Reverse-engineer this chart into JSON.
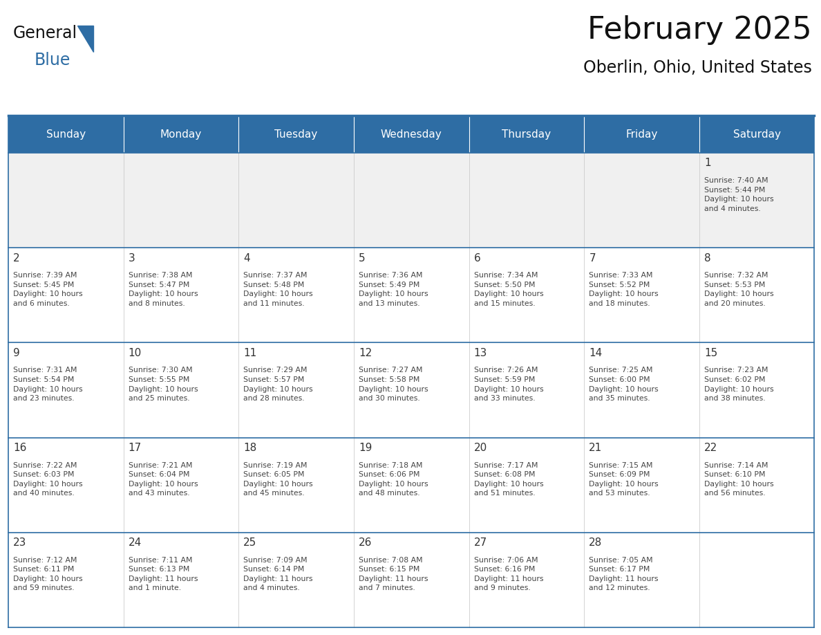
{
  "title": "February 2025",
  "subtitle": "Oberlin, Ohio, United States",
  "days_of_week": [
    "Sunday",
    "Monday",
    "Tuesday",
    "Wednesday",
    "Thursday",
    "Friday",
    "Saturday"
  ],
  "header_bg": "#2E6DA4",
  "header_text_color": "#FFFFFF",
  "cell_bg": "#FFFFFF",
  "cell_bg_first_row": "#F0F0F0",
  "cell_text_color": "#444444",
  "day_num_color": "#333333",
  "border_color": "#2E6DA4",
  "row_separator_color": "#2E6DA4",
  "col_separator_color": "#CCCCCC",
  "calendar_data": [
    [
      null,
      null,
      null,
      null,
      null,
      null,
      {
        "day": 1,
        "sunrise": "7:40 AM",
        "sunset": "5:44 PM",
        "daylight_line1": "10 hours",
        "daylight_line2": "and 4 minutes."
      }
    ],
    [
      {
        "day": 2,
        "sunrise": "7:39 AM",
        "sunset": "5:45 PM",
        "daylight_line1": "10 hours",
        "daylight_line2": "and 6 minutes."
      },
      {
        "day": 3,
        "sunrise": "7:38 AM",
        "sunset": "5:47 PM",
        "daylight_line1": "10 hours",
        "daylight_line2": "and 8 minutes."
      },
      {
        "day": 4,
        "sunrise": "7:37 AM",
        "sunset": "5:48 PM",
        "daylight_line1": "10 hours",
        "daylight_line2": "and 11 minutes."
      },
      {
        "day": 5,
        "sunrise": "7:36 AM",
        "sunset": "5:49 PM",
        "daylight_line1": "10 hours",
        "daylight_line2": "and 13 minutes."
      },
      {
        "day": 6,
        "sunrise": "7:34 AM",
        "sunset": "5:50 PM",
        "daylight_line1": "10 hours",
        "daylight_line2": "and 15 minutes."
      },
      {
        "day": 7,
        "sunrise": "7:33 AM",
        "sunset": "5:52 PM",
        "daylight_line1": "10 hours",
        "daylight_line2": "and 18 minutes."
      },
      {
        "day": 8,
        "sunrise": "7:32 AM",
        "sunset": "5:53 PM",
        "daylight_line1": "10 hours",
        "daylight_line2": "and 20 minutes."
      }
    ],
    [
      {
        "day": 9,
        "sunrise": "7:31 AM",
        "sunset": "5:54 PM",
        "daylight_line1": "10 hours",
        "daylight_line2": "and 23 minutes."
      },
      {
        "day": 10,
        "sunrise": "7:30 AM",
        "sunset": "5:55 PM",
        "daylight_line1": "10 hours",
        "daylight_line2": "and 25 minutes."
      },
      {
        "day": 11,
        "sunrise": "7:29 AM",
        "sunset": "5:57 PM",
        "daylight_line1": "10 hours",
        "daylight_line2": "and 28 minutes."
      },
      {
        "day": 12,
        "sunrise": "7:27 AM",
        "sunset": "5:58 PM",
        "daylight_line1": "10 hours",
        "daylight_line2": "and 30 minutes."
      },
      {
        "day": 13,
        "sunrise": "7:26 AM",
        "sunset": "5:59 PM",
        "daylight_line1": "10 hours",
        "daylight_line2": "and 33 minutes."
      },
      {
        "day": 14,
        "sunrise": "7:25 AM",
        "sunset": "6:00 PM",
        "daylight_line1": "10 hours",
        "daylight_line2": "and 35 minutes."
      },
      {
        "day": 15,
        "sunrise": "7:23 AM",
        "sunset": "6:02 PM",
        "daylight_line1": "10 hours",
        "daylight_line2": "and 38 minutes."
      }
    ],
    [
      {
        "day": 16,
        "sunrise": "7:22 AM",
        "sunset": "6:03 PM",
        "daylight_line1": "10 hours",
        "daylight_line2": "and 40 minutes."
      },
      {
        "day": 17,
        "sunrise": "7:21 AM",
        "sunset": "6:04 PM",
        "daylight_line1": "10 hours",
        "daylight_line2": "and 43 minutes."
      },
      {
        "day": 18,
        "sunrise": "7:19 AM",
        "sunset": "6:05 PM",
        "daylight_line1": "10 hours",
        "daylight_line2": "and 45 minutes."
      },
      {
        "day": 19,
        "sunrise": "7:18 AM",
        "sunset": "6:06 PM",
        "daylight_line1": "10 hours",
        "daylight_line2": "and 48 minutes."
      },
      {
        "day": 20,
        "sunrise": "7:17 AM",
        "sunset": "6:08 PM",
        "daylight_line1": "10 hours",
        "daylight_line2": "and 51 minutes."
      },
      {
        "day": 21,
        "sunrise": "7:15 AM",
        "sunset": "6:09 PM",
        "daylight_line1": "10 hours",
        "daylight_line2": "and 53 minutes."
      },
      {
        "day": 22,
        "sunrise": "7:14 AM",
        "sunset": "6:10 PM",
        "daylight_line1": "10 hours",
        "daylight_line2": "and 56 minutes."
      }
    ],
    [
      {
        "day": 23,
        "sunrise": "7:12 AM",
        "sunset": "6:11 PM",
        "daylight_line1": "10 hours",
        "daylight_line2": "and 59 minutes."
      },
      {
        "day": 24,
        "sunrise": "7:11 AM",
        "sunset": "6:13 PM",
        "daylight_line1": "11 hours",
        "daylight_line2": "and 1 minute."
      },
      {
        "day": 25,
        "sunrise": "7:09 AM",
        "sunset": "6:14 PM",
        "daylight_line1": "11 hours",
        "daylight_line2": "and 4 minutes."
      },
      {
        "day": 26,
        "sunrise": "7:08 AM",
        "sunset": "6:15 PM",
        "daylight_line1": "11 hours",
        "daylight_line2": "and 7 minutes."
      },
      {
        "day": 27,
        "sunrise": "7:06 AM",
        "sunset": "6:16 PM",
        "daylight_line1": "11 hours",
        "daylight_line2": "and 9 minutes."
      },
      {
        "day": 28,
        "sunrise": "7:05 AM",
        "sunset": "6:17 PM",
        "daylight_line1": "11 hours",
        "daylight_line2": "and 12 minutes."
      },
      null
    ]
  ],
  "fig_width": 11.88,
  "fig_height": 9.18
}
